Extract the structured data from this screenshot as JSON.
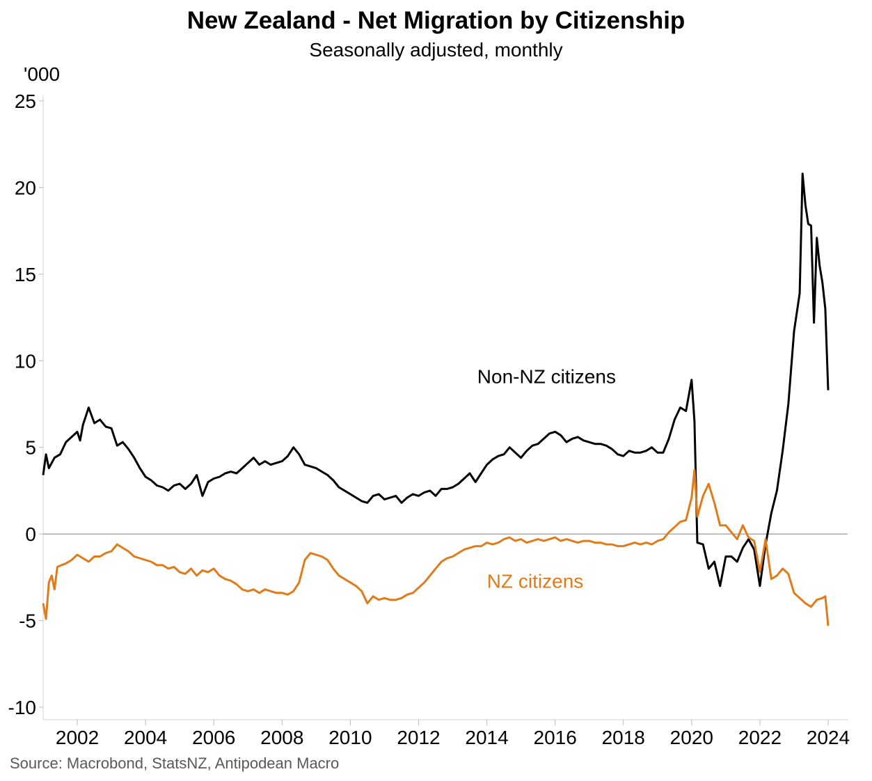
{
  "title": "New Zealand - Net Migration by Citizenship",
  "subtitle": "Seasonally adjusted, monthly",
  "source": "Source: Macrobond, StatsNZ, Antipodean Macro",
  "chart_data": {
    "type": "line",
    "title": "New Zealand - Net Migration by Citizenship",
    "subtitle": "Seasonally adjusted, monthly",
    "ylabel": "'000",
    "xlabel": "",
    "ylim": [
      -10,
      25
    ],
    "xlim": [
      "2001-01",
      "2024-01"
    ],
    "y_ticks": [
      25,
      20,
      15,
      10,
      5,
      0,
      -5,
      -10
    ],
    "x_ticks": [
      "2002",
      "2004",
      "2006",
      "2008",
      "2010",
      "2012",
      "2014",
      "2016",
      "2018",
      "2020",
      "2022",
      "2024"
    ],
    "grid": false,
    "zero_line": true,
    "legend": "inline labels",
    "series": [
      {
        "name": "Non-NZ citizens",
        "color": "#000000",
        "label_anchor": [
          "2015-10",
          8.7
        ],
        "points": [
          [
            "2001-01",
            3.4
          ],
          [
            "2001-02",
            4.6
          ],
          [
            "2001-03",
            3.8
          ],
          [
            "2001-05",
            4.4
          ],
          [
            "2001-07",
            4.6
          ],
          [
            "2001-09",
            5.3
          ],
          [
            "2001-11",
            5.6
          ],
          [
            "2002-01",
            5.9
          ],
          [
            "2002-02",
            5.4
          ],
          [
            "2002-03",
            6.3
          ],
          [
            "2002-05",
            7.3
          ],
          [
            "2002-07",
            6.4
          ],
          [
            "2002-09",
            6.6
          ],
          [
            "2002-11",
            6.2
          ],
          [
            "2003-01",
            6.1
          ],
          [
            "2003-03",
            5.1
          ],
          [
            "2003-05",
            5.3
          ],
          [
            "2003-07",
            4.9
          ],
          [
            "2003-09",
            4.4
          ],
          [
            "2003-11",
            3.8
          ],
          [
            "2004-01",
            3.3
          ],
          [
            "2004-03",
            3.1
          ],
          [
            "2004-05",
            2.8
          ],
          [
            "2004-07",
            2.7
          ],
          [
            "2004-09",
            2.5
          ],
          [
            "2004-11",
            2.8
          ],
          [
            "2005-01",
            2.9
          ],
          [
            "2005-03",
            2.6
          ],
          [
            "2005-05",
            2.9
          ],
          [
            "2005-07",
            3.4
          ],
          [
            "2005-09",
            2.2
          ],
          [
            "2005-11",
            3.0
          ],
          [
            "2006-01",
            3.2
          ],
          [
            "2006-03",
            3.3
          ],
          [
            "2006-05",
            3.5
          ],
          [
            "2006-07",
            3.6
          ],
          [
            "2006-09",
            3.5
          ],
          [
            "2006-11",
            3.8
          ],
          [
            "2007-01",
            4.1
          ],
          [
            "2007-03",
            4.4
          ],
          [
            "2007-05",
            4.0
          ],
          [
            "2007-07",
            4.2
          ],
          [
            "2007-09",
            4.0
          ],
          [
            "2007-11",
            4.1
          ],
          [
            "2008-01",
            4.2
          ],
          [
            "2008-03",
            4.5
          ],
          [
            "2008-05",
            5.0
          ],
          [
            "2008-07",
            4.6
          ],
          [
            "2008-09",
            4.0
          ],
          [
            "2008-11",
            3.9
          ],
          [
            "2009-01",
            3.8
          ],
          [
            "2009-03",
            3.6
          ],
          [
            "2009-05",
            3.4
          ],
          [
            "2009-07",
            3.1
          ],
          [
            "2009-09",
            2.7
          ],
          [
            "2009-11",
            2.5
          ],
          [
            "2010-01",
            2.3
          ],
          [
            "2010-03",
            2.1
          ],
          [
            "2010-05",
            1.9
          ],
          [
            "2010-07",
            1.8
          ],
          [
            "2010-09",
            2.2
          ],
          [
            "2010-11",
            2.3
          ],
          [
            "2011-01",
            2.0
          ],
          [
            "2011-03",
            2.1
          ],
          [
            "2011-05",
            2.2
          ],
          [
            "2011-07",
            1.8
          ],
          [
            "2011-09",
            2.1
          ],
          [
            "2011-11",
            2.3
          ],
          [
            "2012-01",
            2.2
          ],
          [
            "2012-03",
            2.4
          ],
          [
            "2012-05",
            2.5
          ],
          [
            "2012-07",
            2.2
          ],
          [
            "2012-09",
            2.6
          ],
          [
            "2012-11",
            2.6
          ],
          [
            "2013-01",
            2.7
          ],
          [
            "2013-03",
            2.9
          ],
          [
            "2013-05",
            3.2
          ],
          [
            "2013-07",
            3.5
          ],
          [
            "2013-09",
            3.0
          ],
          [
            "2013-11",
            3.5
          ],
          [
            "2014-01",
            4.0
          ],
          [
            "2014-03",
            4.3
          ],
          [
            "2014-05",
            4.5
          ],
          [
            "2014-07",
            4.6
          ],
          [
            "2014-09",
            5.0
          ],
          [
            "2014-11",
            4.7
          ],
          [
            "2015-01",
            4.4
          ],
          [
            "2015-03",
            4.8
          ],
          [
            "2015-05",
            5.1
          ],
          [
            "2015-07",
            5.2
          ],
          [
            "2015-09",
            5.5
          ],
          [
            "2015-11",
            5.8
          ],
          [
            "2016-01",
            5.9
          ],
          [
            "2016-03",
            5.7
          ],
          [
            "2016-05",
            5.3
          ],
          [
            "2016-07",
            5.5
          ],
          [
            "2016-09",
            5.6
          ],
          [
            "2016-11",
            5.4
          ],
          [
            "2017-01",
            5.3
          ],
          [
            "2017-03",
            5.2
          ],
          [
            "2017-05",
            5.2
          ],
          [
            "2017-07",
            5.1
          ],
          [
            "2017-09",
            4.9
          ],
          [
            "2017-11",
            4.6
          ],
          [
            "2018-01",
            4.5
          ],
          [
            "2018-03",
            4.8
          ],
          [
            "2018-05",
            4.7
          ],
          [
            "2018-07",
            4.7
          ],
          [
            "2018-09",
            4.8
          ],
          [
            "2018-11",
            5.0
          ],
          [
            "2019-01",
            4.7
          ],
          [
            "2019-03",
            4.7
          ],
          [
            "2019-05",
            5.5
          ],
          [
            "2019-07",
            6.6
          ],
          [
            "2019-09",
            7.3
          ],
          [
            "2019-11",
            7.1
          ],
          [
            "2020-01",
            8.9
          ],
          [
            "2020-02",
            6.5
          ],
          [
            "2020-03",
            -0.5
          ],
          [
            "2020-05",
            -0.6
          ],
          [
            "2020-07",
            -2.0
          ],
          [
            "2020-09",
            -1.6
          ],
          [
            "2020-11",
            -3.0
          ],
          [
            "2021-01",
            -1.3
          ],
          [
            "2021-03",
            -1.3
          ],
          [
            "2021-05",
            -1.6
          ],
          [
            "2021-07",
            -0.8
          ],
          [
            "2021-09",
            -0.3
          ],
          [
            "2021-11",
            -0.9
          ],
          [
            "2022-01",
            -3.0
          ],
          [
            "2022-03",
            -0.6
          ],
          [
            "2022-05",
            1.2
          ],
          [
            "2022-07",
            2.5
          ],
          [
            "2022-09",
            4.8
          ],
          [
            "2022-11",
            7.5
          ],
          [
            "2023-01",
            11.7
          ],
          [
            "2023-03",
            13.9
          ],
          [
            "2023-04",
            20.8
          ],
          [
            "2023-05",
            19.0
          ],
          [
            "2023-06",
            17.9
          ],
          [
            "2023-07",
            17.8
          ],
          [
            "2023-08",
            12.2
          ],
          [
            "2023-09",
            17.1
          ],
          [
            "2023-10",
            15.5
          ],
          [
            "2023-11",
            14.5
          ],
          [
            "2023-12",
            13.0
          ],
          [
            "2024-01",
            8.3
          ]
        ]
      },
      {
        "name": "NZ citizens",
        "color": "#e07b1a",
        "label_anchor": [
          "2015-06",
          -3.1
        ],
        "points": [
          [
            "2001-01",
            -4.0
          ],
          [
            "2001-02",
            -4.9
          ],
          [
            "2001-03",
            -2.8
          ],
          [
            "2001-04",
            -2.4
          ],
          [
            "2001-05",
            -3.2
          ],
          [
            "2001-06",
            -1.9
          ],
          [
            "2001-09",
            -1.7
          ],
          [
            "2001-11",
            -1.5
          ],
          [
            "2002-01",
            -1.2
          ],
          [
            "2002-03",
            -1.4
          ],
          [
            "2002-05",
            -1.6
          ],
          [
            "2002-07",
            -1.3
          ],
          [
            "2002-09",
            -1.3
          ],
          [
            "2002-11",
            -1.1
          ],
          [
            "2003-01",
            -1.0
          ],
          [
            "2003-03",
            -0.6
          ],
          [
            "2003-05",
            -0.8
          ],
          [
            "2003-07",
            -1.0
          ],
          [
            "2003-09",
            -1.3
          ],
          [
            "2003-11",
            -1.4
          ],
          [
            "2004-01",
            -1.5
          ],
          [
            "2004-03",
            -1.6
          ],
          [
            "2004-05",
            -1.8
          ],
          [
            "2004-07",
            -1.8
          ],
          [
            "2004-09",
            -2.0
          ],
          [
            "2004-11",
            -1.9
          ],
          [
            "2005-01",
            -2.2
          ],
          [
            "2005-03",
            -2.3
          ],
          [
            "2005-05",
            -2.0
          ],
          [
            "2005-07",
            -2.4
          ],
          [
            "2005-09",
            -2.1
          ],
          [
            "2005-11",
            -2.2
          ],
          [
            "2006-01",
            -2.0
          ],
          [
            "2006-03",
            -2.4
          ],
          [
            "2006-05",
            -2.6
          ],
          [
            "2006-07",
            -2.7
          ],
          [
            "2006-09",
            -2.9
          ],
          [
            "2006-11",
            -3.2
          ],
          [
            "2007-01",
            -3.3
          ],
          [
            "2007-03",
            -3.2
          ],
          [
            "2007-05",
            -3.4
          ],
          [
            "2007-07",
            -3.2
          ],
          [
            "2007-09",
            -3.3
          ],
          [
            "2007-11",
            -3.4
          ],
          [
            "2008-01",
            -3.4
          ],
          [
            "2008-03",
            -3.5
          ],
          [
            "2008-05",
            -3.3
          ],
          [
            "2008-07",
            -2.8
          ],
          [
            "2008-09",
            -1.5
          ],
          [
            "2008-11",
            -1.1
          ],
          [
            "2009-01",
            -1.2
          ],
          [
            "2009-03",
            -1.3
          ],
          [
            "2009-05",
            -1.5
          ],
          [
            "2009-07",
            -2.0
          ],
          [
            "2009-09",
            -2.4
          ],
          [
            "2009-11",
            -2.6
          ],
          [
            "2010-01",
            -2.8
          ],
          [
            "2010-03",
            -3.0
          ],
          [
            "2010-05",
            -3.3
          ],
          [
            "2010-07",
            -4.0
          ],
          [
            "2010-09",
            -3.6
          ],
          [
            "2010-11",
            -3.8
          ],
          [
            "2011-01",
            -3.7
          ],
          [
            "2011-03",
            -3.8
          ],
          [
            "2011-05",
            -3.8
          ],
          [
            "2011-07",
            -3.7
          ],
          [
            "2011-09",
            -3.5
          ],
          [
            "2011-11",
            -3.4
          ],
          [
            "2012-01",
            -3.1
          ],
          [
            "2012-03",
            -2.8
          ],
          [
            "2012-05",
            -2.4
          ],
          [
            "2012-07",
            -2.0
          ],
          [
            "2012-09",
            -1.6
          ],
          [
            "2012-11",
            -1.4
          ],
          [
            "2013-01",
            -1.3
          ],
          [
            "2013-03",
            -1.1
          ],
          [
            "2013-05",
            -0.9
          ],
          [
            "2013-07",
            -0.8
          ],
          [
            "2013-09",
            -0.7
          ],
          [
            "2013-11",
            -0.7
          ],
          [
            "2014-01",
            -0.5
          ],
          [
            "2014-03",
            -0.6
          ],
          [
            "2014-05",
            -0.5
          ],
          [
            "2014-07",
            -0.3
          ],
          [
            "2014-09",
            -0.2
          ],
          [
            "2014-11",
            -0.4
          ],
          [
            "2015-01",
            -0.3
          ],
          [
            "2015-03",
            -0.5
          ],
          [
            "2015-05",
            -0.4
          ],
          [
            "2015-07",
            -0.3
          ],
          [
            "2015-09",
            -0.4
          ],
          [
            "2015-11",
            -0.3
          ],
          [
            "2016-01",
            -0.2
          ],
          [
            "2016-03",
            -0.4
          ],
          [
            "2016-05",
            -0.3
          ],
          [
            "2016-07",
            -0.4
          ],
          [
            "2016-09",
            -0.5
          ],
          [
            "2016-11",
            -0.4
          ],
          [
            "2017-01",
            -0.4
          ],
          [
            "2017-03",
            -0.5
          ],
          [
            "2017-05",
            -0.5
          ],
          [
            "2017-07",
            -0.6
          ],
          [
            "2017-09",
            -0.6
          ],
          [
            "2017-11",
            -0.7
          ],
          [
            "2018-01",
            -0.7
          ],
          [
            "2018-03",
            -0.6
          ],
          [
            "2018-05",
            -0.5
          ],
          [
            "2018-07",
            -0.6
          ],
          [
            "2018-09",
            -0.5
          ],
          [
            "2018-11",
            -0.6
          ],
          [
            "2019-01",
            -0.4
          ],
          [
            "2019-03",
            -0.3
          ],
          [
            "2019-05",
            0.1
          ],
          [
            "2019-07",
            0.4
          ],
          [
            "2019-09",
            0.7
          ],
          [
            "2019-11",
            0.8
          ],
          [
            "2020-01",
            2.1
          ],
          [
            "2020-02",
            3.7
          ],
          [
            "2020-03",
            1.0
          ],
          [
            "2020-05",
            2.2
          ],
          [
            "2020-07",
            2.9
          ],
          [
            "2020-09",
            1.8
          ],
          [
            "2020-11",
            0.5
          ],
          [
            "2021-01",
            0.5
          ],
          [
            "2021-03",
            0.1
          ],
          [
            "2021-05",
            -0.3
          ],
          [
            "2021-07",
            0.5
          ],
          [
            "2021-09",
            -0.2
          ],
          [
            "2021-11",
            -0.4
          ],
          [
            "2022-01",
            -2.2
          ],
          [
            "2022-03",
            -0.3
          ],
          [
            "2022-05",
            -2.6
          ],
          [
            "2022-07",
            -2.4
          ],
          [
            "2022-09",
            -2.0
          ],
          [
            "2022-11",
            -2.3
          ],
          [
            "2023-01",
            -3.4
          ],
          [
            "2023-03",
            -3.7
          ],
          [
            "2023-05",
            -4.0
          ],
          [
            "2023-07",
            -4.2
          ],
          [
            "2023-09",
            -3.8
          ],
          [
            "2023-11",
            -3.7
          ],
          [
            "2023-12",
            -3.6
          ],
          [
            "2024-01",
            -5.3
          ]
        ]
      }
    ]
  }
}
